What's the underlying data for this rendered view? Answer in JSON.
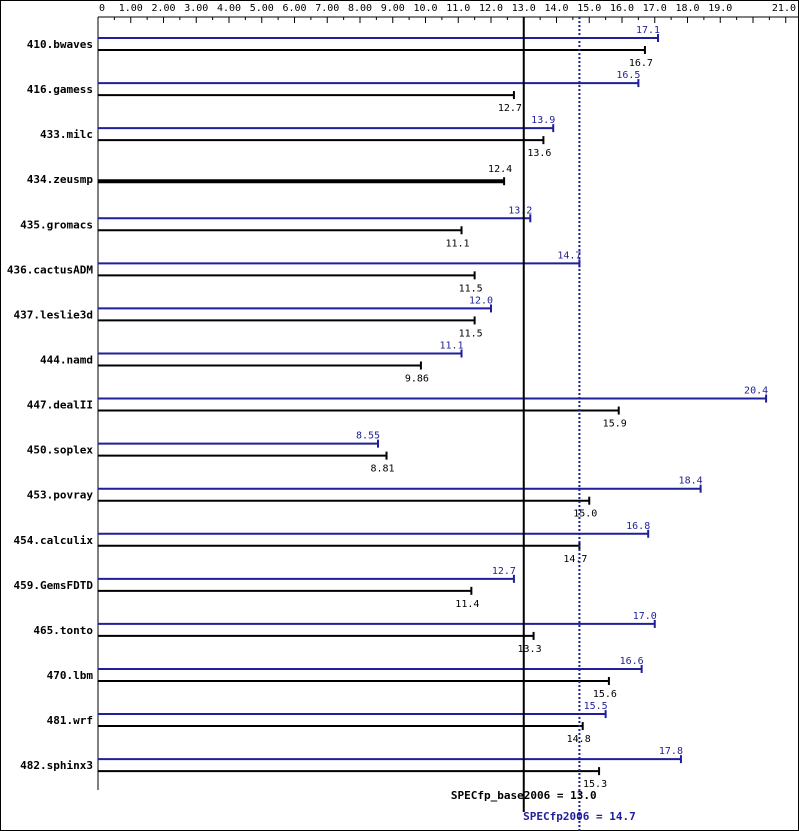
{
  "chart_data": {
    "type": "bar",
    "orientation": "horizontal",
    "xlim": [
      0,
      21.0
    ],
    "x_ticks": [
      0,
      1.0,
      2.0,
      3.0,
      4.0,
      5.0,
      6.0,
      7.0,
      8.0,
      9.0,
      10.0,
      11.0,
      12.0,
      13.0,
      14.0,
      15.0,
      16.0,
      17.0,
      18.0,
      19.0,
      21.0
    ],
    "x_tick_labels": [
      "0",
      "1.00",
      "2.00",
      "3.00",
      "4.00",
      "5.00",
      "6.00",
      "7.00",
      "8.00",
      "9.00",
      "10.0",
      "11.0",
      "12.0",
      "13.0",
      "14.0",
      "15.0",
      "16.0",
      "17.0",
      "18.0",
      "19.0",
      "21.0"
    ],
    "categories": [
      "410.bwaves",
      "416.gamess",
      "433.milc",
      "434.zeusmp",
      "435.gromacs",
      "436.cactusADM",
      "437.leslie3d",
      "444.namd",
      "447.dealII",
      "450.soplex",
      "453.povray",
      "454.calculix",
      "459.GemsFDTD",
      "465.tonto",
      "470.lbm",
      "481.wrf",
      "482.sphinx3"
    ],
    "series": [
      {
        "key": "peak",
        "values": [
          17.1,
          16.5,
          13.9,
          null,
          13.2,
          14.7,
          12.0,
          11.1,
          20.4,
          8.55,
          18.4,
          16.8,
          12.7,
          17.0,
          16.6,
          15.5,
          17.8
        ],
        "labels": [
          "17.1",
          "16.5",
          "13.9",
          "",
          "13.2",
          "14.7",
          "12.0",
          "11.1",
          "20.4",
          "8.55",
          "18.4",
          "16.8",
          "12.7",
          "17.0",
          "16.6",
          "15.5",
          "17.8"
        ],
        "color": "#1f1f99"
      },
      {
        "key": "base",
        "values": [
          16.7,
          12.7,
          13.6,
          12.4,
          11.1,
          11.5,
          11.5,
          9.86,
          15.9,
          8.81,
          15.0,
          14.7,
          11.4,
          13.3,
          15.6,
          14.8,
          15.3
        ],
        "labels": [
          "16.7",
          "12.7",
          "13.6",
          "12.4",
          "11.1",
          "11.5",
          "11.5",
          "9.86",
          "15.9",
          "8.81",
          "15.0",
          "14.7",
          "11.4",
          "13.3",
          "15.6",
          "14.8",
          "15.3"
        ],
        "color": "#000000"
      }
    ],
    "reference_lines": [
      {
        "key": "base",
        "label": "SPECfp_base2006 = 13.0",
        "value": 13.0,
        "style": "solid",
        "color": "#000000"
      },
      {
        "key": "peak",
        "label": "SPECfp2006 = 14.7",
        "value": 14.7,
        "style": "dotted",
        "color": "#1f1f99"
      }
    ],
    "grid": false
  }
}
